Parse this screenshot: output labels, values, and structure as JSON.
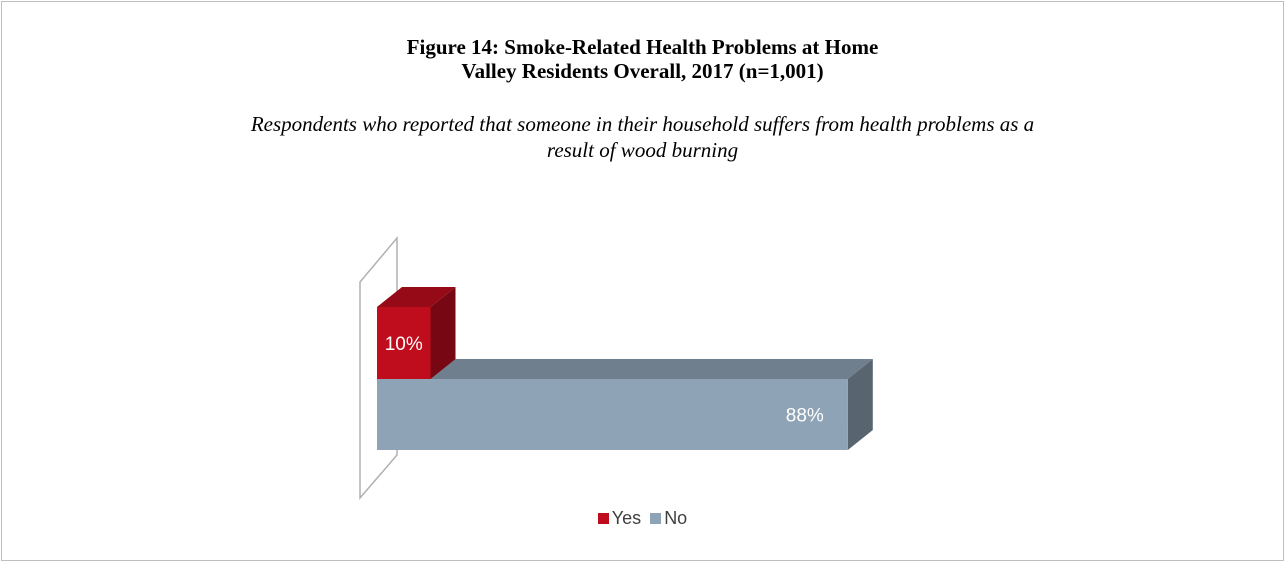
{
  "title_line1": "Figure 14: Smoke-Related Health Problems at Home",
  "title_line2": "Valley Residents Overall, 2017 (n=1,001)",
  "subtitle_line1": "Respondents who reported that someone in their household suffers from health problems as a",
  "subtitle_line2": "result of wood burning",
  "chart_data": {
    "type": "bar",
    "orientation": "horizontal",
    "style": "3d",
    "xlim": [
      0,
      100
    ],
    "series": [
      {
        "name": "Yes",
        "values": [
          10
        ],
        "label": "10%",
        "color": "#c00d1e"
      },
      {
        "name": "No",
        "values": [
          88
        ],
        "label": "88%",
        "color": "#8ea3b5"
      }
    ],
    "legend": {
      "position": "bottom",
      "items": [
        "Yes",
        "No"
      ]
    }
  }
}
